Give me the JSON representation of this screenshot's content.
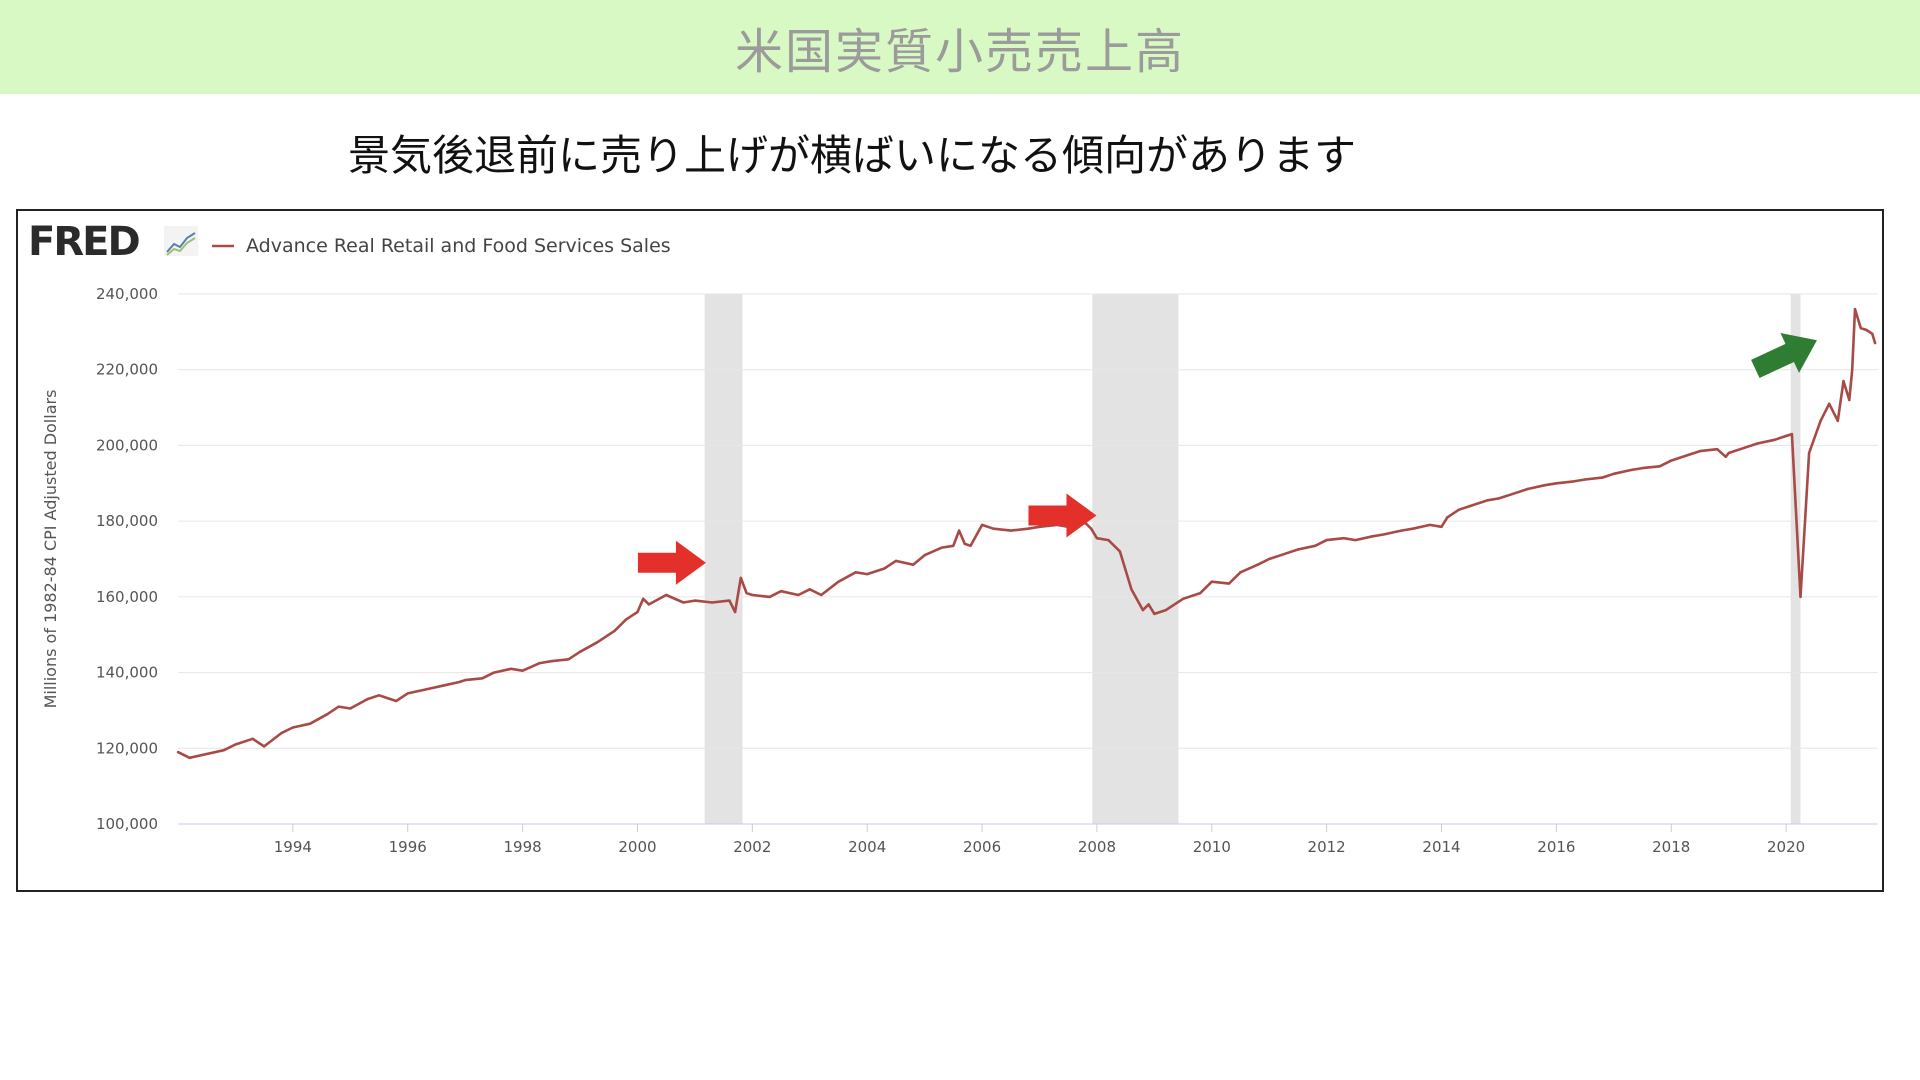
{
  "slide": {
    "title": "米国実質小売売上高",
    "subtitle": "景気後退前に売り上げが横ばいになる傾向があります"
  },
  "colors": {
    "title_bar": "#d9f9c4",
    "series": "#a84a45",
    "recession_band": "#e3e3e3",
    "red_arrow": "#e3302a",
    "green_arrow": "#2e7d32"
  },
  "fred": {
    "logo_text": "FRED",
    "logo_icon": "fred-chart-icon"
  },
  "chart_data": {
    "type": "line",
    "title": "",
    "xlabel": "",
    "ylabel": "Millions of 1982-84 CPI Adjusted Dollars",
    "xlim": [
      1992.0,
      2021.6
    ],
    "ylim": [
      100000,
      240000
    ],
    "y_ticks": [
      100000,
      120000,
      140000,
      160000,
      180000,
      200000,
      220000,
      240000
    ],
    "y_tick_labels": [
      "100,000",
      "120,000",
      "140,000",
      "160,000",
      "180,000",
      "200,000",
      "220,000",
      "240,000"
    ],
    "x_ticks": [
      1994,
      1996,
      1998,
      2000,
      2002,
      2004,
      2006,
      2008,
      2010,
      2012,
      2014,
      2016,
      2018,
      2020
    ],
    "x_tick_labels": [
      "1994",
      "1996",
      "1998",
      "2000",
      "2002",
      "2004",
      "2006",
      "2008",
      "2010",
      "2012",
      "2014",
      "2016",
      "2018",
      "2020"
    ],
    "grid": true,
    "legend": "top-left",
    "recessions": [
      [
        2001.17,
        2001.83
      ],
      [
        2007.92,
        2009.42
      ],
      [
        2020.08,
        2020.25
      ]
    ],
    "series": [
      {
        "name": "Advance Real Retail and Food Services Sales",
        "x": [
          1992.0,
          1992.2,
          1992.5,
          1992.8,
          1993.0,
          1993.3,
          1993.5,
          1993.8,
          1994.0,
          1994.3,
          1994.6,
          1994.8,
          1995.0,
          1995.3,
          1995.5,
          1995.8,
          1996.0,
          1996.3,
          1996.6,
          1996.9,
          1997.0,
          1997.3,
          1997.5,
          1997.8,
          1998.0,
          1998.3,
          1998.5,
          1998.8,
          1999.0,
          1999.3,
          1999.6,
          1999.8,
          2000.0,
          2000.1,
          2000.2,
          2000.5,
          2000.8,
          2001.0,
          2001.3,
          2001.6,
          2001.7,
          2001.8,
          2001.9,
          2002.0,
          2002.3,
          2002.5,
          2002.8,
          2003.0,
          2003.2,
          2003.5,
          2003.8,
          2004.0,
          2004.3,
          2004.5,
          2004.8,
          2005.0,
          2005.3,
          2005.5,
          2005.6,
          2005.7,
          2005.8,
          2006.0,
          2006.2,
          2006.5,
          2006.8,
          2007.0,
          2007.3,
          2007.5,
          2007.8,
          2007.9,
          2008.0,
          2008.2,
          2008.4,
          2008.6,
          2008.8,
          2008.9,
          2009.0,
          2009.2,
          2009.5,
          2009.8,
          2010.0,
          2010.3,
          2010.5,
          2010.8,
          2011.0,
          2011.3,
          2011.5,
          2011.8,
          2012.0,
          2012.3,
          2012.5,
          2012.8,
          2013.0,
          2013.3,
          2013.5,
          2013.8,
          2014.0,
          2014.1,
          2014.3,
          2014.5,
          2014.8,
          2015.0,
          2015.3,
          2015.5,
          2015.8,
          2016.0,
          2016.3,
          2016.5,
          2016.8,
          2017.0,
          2017.3,
          2017.5,
          2017.8,
          2018.0,
          2018.3,
          2018.5,
          2018.8,
          2018.95,
          2019.0,
          2019.3,
          2019.5,
          2019.8,
          2020.0,
          2020.1,
          2020.25,
          2020.4,
          2020.6,
          2020.75,
          2020.9,
          2021.0,
          2021.1,
          2021.15,
          2021.2,
          2021.3,
          2021.4,
          2021.5,
          2021.55
        ],
        "values": [
          119000,
          117500,
          118500,
          119500,
          121000,
          122500,
          120500,
          124000,
          125500,
          126500,
          129000,
          131000,
          130500,
          133000,
          134000,
          132500,
          134500,
          135500,
          136500,
          137500,
          138000,
          138500,
          140000,
          141000,
          140500,
          142500,
          143000,
          143500,
          145500,
          148000,
          151000,
          154000,
          156000,
          159500,
          158000,
          160500,
          158500,
          159000,
          158500,
          159000,
          156000,
          165000,
          161000,
          160500,
          160000,
          161500,
          160500,
          162000,
          160500,
          164000,
          166500,
          166000,
          167500,
          169500,
          168500,
          171000,
          173000,
          173500,
          177500,
          174000,
          173500,
          179000,
          178000,
          177500,
          178000,
          178500,
          179000,
          178500,
          179500,
          178000,
          175500,
          175000,
          172000,
          162000,
          156500,
          158000,
          155500,
          156500,
          159500,
          161000,
          164000,
          163500,
          166500,
          168500,
          170000,
          171500,
          172500,
          173500,
          175000,
          175500,
          175000,
          176000,
          176500,
          177500,
          178000,
          179000,
          178500,
          181000,
          183000,
          184000,
          185500,
          186000,
          187500,
          188500,
          189500,
          190000,
          190500,
          191000,
          191500,
          192500,
          193500,
          194000,
          194500,
          196000,
          197500,
          198500,
          199000,
          197000,
          198000,
          199500,
          200500,
          201500,
          202500,
          203000,
          160000,
          198000,
          206500,
          211000,
          206500,
          217000,
          212000,
          220000,
          236000,
          231000,
          230500,
          229500,
          227000
        ]
      }
    ],
    "annotations": [
      {
        "type": "arrow",
        "color": "red",
        "direction": "right",
        "x": 2000.6,
        "y": 169000
      },
      {
        "type": "arrow",
        "color": "red",
        "direction": "right",
        "x": 2007.4,
        "y": 181500
      },
      {
        "type": "arrow",
        "color": "green",
        "direction": "up-right",
        "x": 2020.0,
        "y": 224000
      }
    ]
  }
}
